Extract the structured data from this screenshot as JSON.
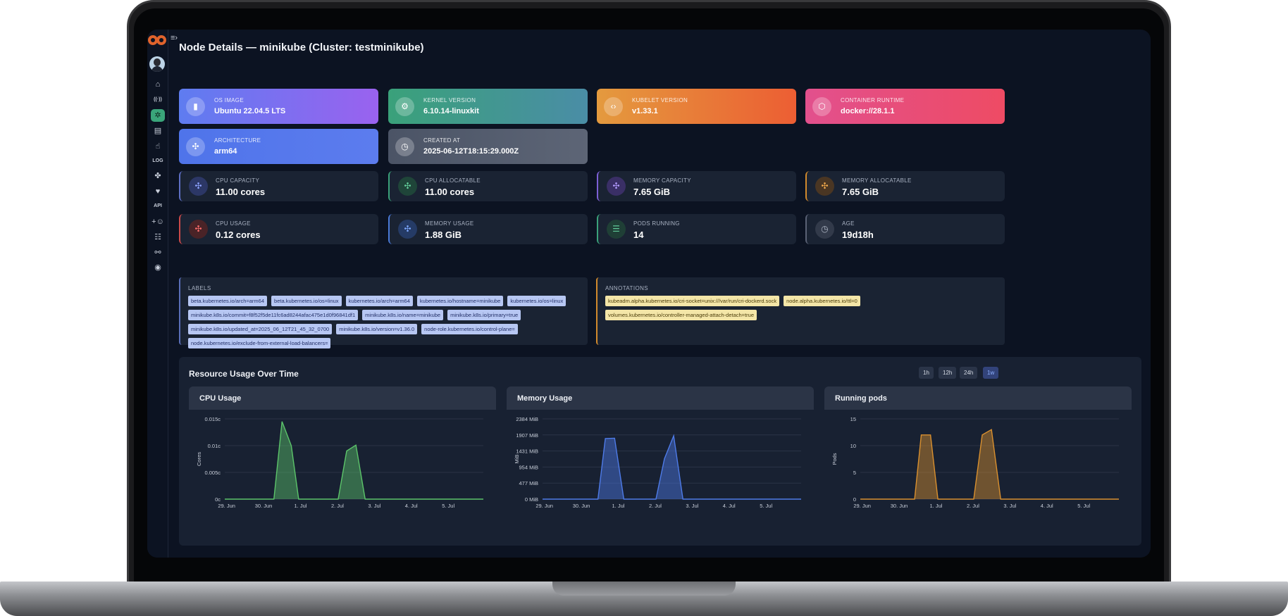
{
  "page_title": "Node Details — minikube (Cluster: testminikube)",
  "sidebar": {
    "items": [
      {
        "name": "home-icon",
        "glyph": "⌂"
      },
      {
        "name": "broadcast-icon",
        "glyph": "((·))"
      },
      {
        "name": "cluster-icon",
        "glyph": "✲",
        "active": true
      },
      {
        "name": "dashboard-icon",
        "glyph": "▤"
      },
      {
        "name": "pointer-icon",
        "glyph": "☝"
      },
      {
        "name": "log-icon",
        "glyph": "LOG"
      },
      {
        "name": "puzzle-icon",
        "glyph": "✤"
      },
      {
        "name": "heartbeat-icon",
        "glyph": "♥"
      },
      {
        "name": "api-icon",
        "glyph": "API"
      },
      {
        "name": "add-user-icon",
        "glyph": "+☺"
      },
      {
        "name": "user-list-icon",
        "glyph": "☷"
      },
      {
        "name": "webhook-icon",
        "glyph": "⚯"
      },
      {
        "name": "palette-icon",
        "glyph": "◉"
      }
    ]
  },
  "info_cards": [
    {
      "label": "OS IMAGE",
      "value": "Ubuntu 22.04.5 LTS",
      "icon": "server-icon",
      "glyph": "▮",
      "from": "#5e7cf0",
      "to": "#9a62ef"
    },
    {
      "label": "KERNEL VERSION",
      "value": "6.10.14-linuxkit",
      "icon": "chip-icon",
      "glyph": "⚙",
      "from": "#3aa17a",
      "to": "#4a8da6"
    },
    {
      "label": "KUBELET VERSION",
      "value": "v1.33.1",
      "icon": "code-icon",
      "glyph": "‹›",
      "from": "#e49a3e",
      "to": "#ec5e33"
    },
    {
      "label": "CONTAINER RUNTIME",
      "value": "docker://28.1.1",
      "icon": "box-icon",
      "glyph": "⬡",
      "from": "#e2508d",
      "to": "#ee4b64"
    },
    {
      "label": "ARCHITECTURE",
      "value": "arm64",
      "icon": "cpu-icon",
      "glyph": "✣",
      "from": "#4f74ea",
      "to": "#5c7cee"
    },
    {
      "label": "CREATED AT",
      "value": "2025-06-12T18:15:29.000Z",
      "icon": "clock-icon",
      "glyph": "◷",
      "from": "#4b5466",
      "to": "#5d6576"
    }
  ],
  "stat_cards": [
    {
      "label": "CPU CAPACITY",
      "value": "11.00 cores",
      "icon": "cpu-icon",
      "glyph": "✣",
      "border": "#5e6fc4",
      "iconbg": "#2c3766",
      "iconfg": "#8ea3ff"
    },
    {
      "label": "CPU ALLOCATABLE",
      "value": "11.00 cores",
      "icon": "cpu-icon",
      "glyph": "✣",
      "border": "#3aa17a",
      "iconbg": "#1f4539",
      "iconfg": "#63d09c"
    },
    {
      "label": "MEMORY CAPACITY",
      "value": "7.65 GiB",
      "icon": "memory-icon",
      "glyph": "✣",
      "border": "#7c5fd6",
      "iconbg": "#3a2f66",
      "iconfg": "#b39bff"
    },
    {
      "label": "MEMORY ALLOCATABLE",
      "value": "7.65 GiB",
      "icon": "memory-icon",
      "glyph": "✣",
      "border": "#d28a2c",
      "iconbg": "#4a3623",
      "iconfg": "#f0a84c"
    },
    {
      "label": "CPU USAGE",
      "value": "0.12 cores",
      "icon": "cpu-icon",
      "glyph": "✣",
      "border": "#cc4a4a",
      "iconbg": "#4a2327",
      "iconfg": "#ff6d6d"
    },
    {
      "label": "MEMORY USAGE",
      "value": "1.88 GiB",
      "icon": "memory-icon",
      "glyph": "✣",
      "border": "#4a7ad8",
      "iconbg": "#253b66",
      "iconfg": "#7ea8ff"
    },
    {
      "label": "PODS RUNNING",
      "value": "14",
      "icon": "list-icon",
      "glyph": "☰",
      "border": "#3aa17a",
      "iconbg": "#1f3f36",
      "iconfg": "#5fc898"
    },
    {
      "label": "AGE",
      "value": "19d18h",
      "icon": "clock-icon",
      "glyph": "◷",
      "border": "#5a6275",
      "iconbg": "#323a4a",
      "iconfg": "#aeb6c5"
    }
  ],
  "labels": {
    "title": "LABELS",
    "items": [
      "beta.kubernetes.io/arch=arm64",
      "beta.kubernetes.io/os=linux",
      "kubernetes.io/arch=arm64",
      "kubernetes.io/hostname=minikube",
      "kubernetes.io/os=linux",
      "minikube.k8s.io/commit=f8f52f5de11fc6ad8244afac475e1d0f96841df1",
      "minikube.k8s.io/name=minikube",
      "minikube.k8s.io/primary=true",
      "minikube.k8s.io/updated_at=2025_06_12T21_45_32_0700",
      "minikube.k8s.io/version=v1.36.0",
      "node-role.kubernetes.io/control-plane=",
      "node.kubernetes.io/exclude-from-external-load-balancers="
    ]
  },
  "annotations": {
    "title": "ANNOTATIONS",
    "items": [
      "kubeadm.alpha.kubernetes.io/cri-socket=unix:///var/run/cri-dockerd.sock",
      "node.alpha.kubernetes.io/ttl=0",
      "volumes.kubernetes.io/controller-managed-attach-detach=true"
    ]
  },
  "resource_usage": {
    "title": "Resource Usage Over Time",
    "ranges": [
      "1h",
      "12h",
      "24h",
      "1w"
    ],
    "selected_range": "1w"
  },
  "chart_data": [
    {
      "type": "area",
      "title": "CPU Usage",
      "ylabel": "Cores",
      "color": "#5cc46a",
      "x_ticks": [
        "29. Jun",
        "30. Jun",
        "1. Jul",
        "2. Jul",
        "3. Jul",
        "4. Jul",
        "5. Jul"
      ],
      "y_ticks": [
        "0c",
        "0.005c",
        "0.01c",
        "0.015c"
      ],
      "ylim": [
        0,
        0.015
      ],
      "x_range": [
        0,
        7.0
      ],
      "series": [
        {
          "x": [
            0,
            1.33,
            1.55,
            1.8,
            2.0,
            3.07,
            3.3,
            3.55,
            3.8,
            7.0
          ],
          "y": [
            0,
            0,
            0.0145,
            0.01,
            0,
            0,
            0.009,
            0.0101,
            0,
            0
          ]
        }
      ]
    },
    {
      "type": "area",
      "title": "Memory Usage",
      "ylabel": "MiB",
      "color": "#4e7be8",
      "x_ticks": [
        "29. Jun",
        "30. Jun",
        "1. Jul",
        "2. Jul",
        "3. Jul",
        "4. Jul",
        "5. Jul"
      ],
      "y_ticks": [
        "0 MiB",
        "477 MiB",
        "954 MiB",
        "1431 MiB",
        "1907 MiB",
        "2384 MiB"
      ],
      "ylim": [
        0,
        2384
      ],
      "x_range": [
        0,
        7.0
      ],
      "series": [
        {
          "x": [
            0,
            1.5,
            1.7,
            1.95,
            2.2,
            3.07,
            3.3,
            3.55,
            3.8,
            7.0
          ],
          "y": [
            0,
            0,
            1800,
            1810,
            0,
            0,
            1200,
            1880,
            0,
            0
          ]
        }
      ]
    },
    {
      "type": "area",
      "title": "Running pods",
      "ylabel": "Pods",
      "color": "#d9902f",
      "x_ticks": [
        "29. Jun",
        "30. Jun",
        "1. Jul",
        "2. Jul",
        "3. Jul",
        "4. Jul",
        "5. Jul"
      ],
      "y_ticks": [
        "0",
        "5",
        "10",
        "15"
      ],
      "ylim": [
        0,
        15
      ],
      "x_range": [
        0,
        7.0
      ],
      "series": [
        {
          "x": [
            0,
            1.47,
            1.65,
            1.9,
            2.1,
            3.07,
            3.3,
            3.55,
            3.8,
            7.0
          ],
          "y": [
            0,
            0,
            12,
            12,
            0,
            0,
            12,
            13,
            0,
            0
          ]
        }
      ]
    }
  ]
}
